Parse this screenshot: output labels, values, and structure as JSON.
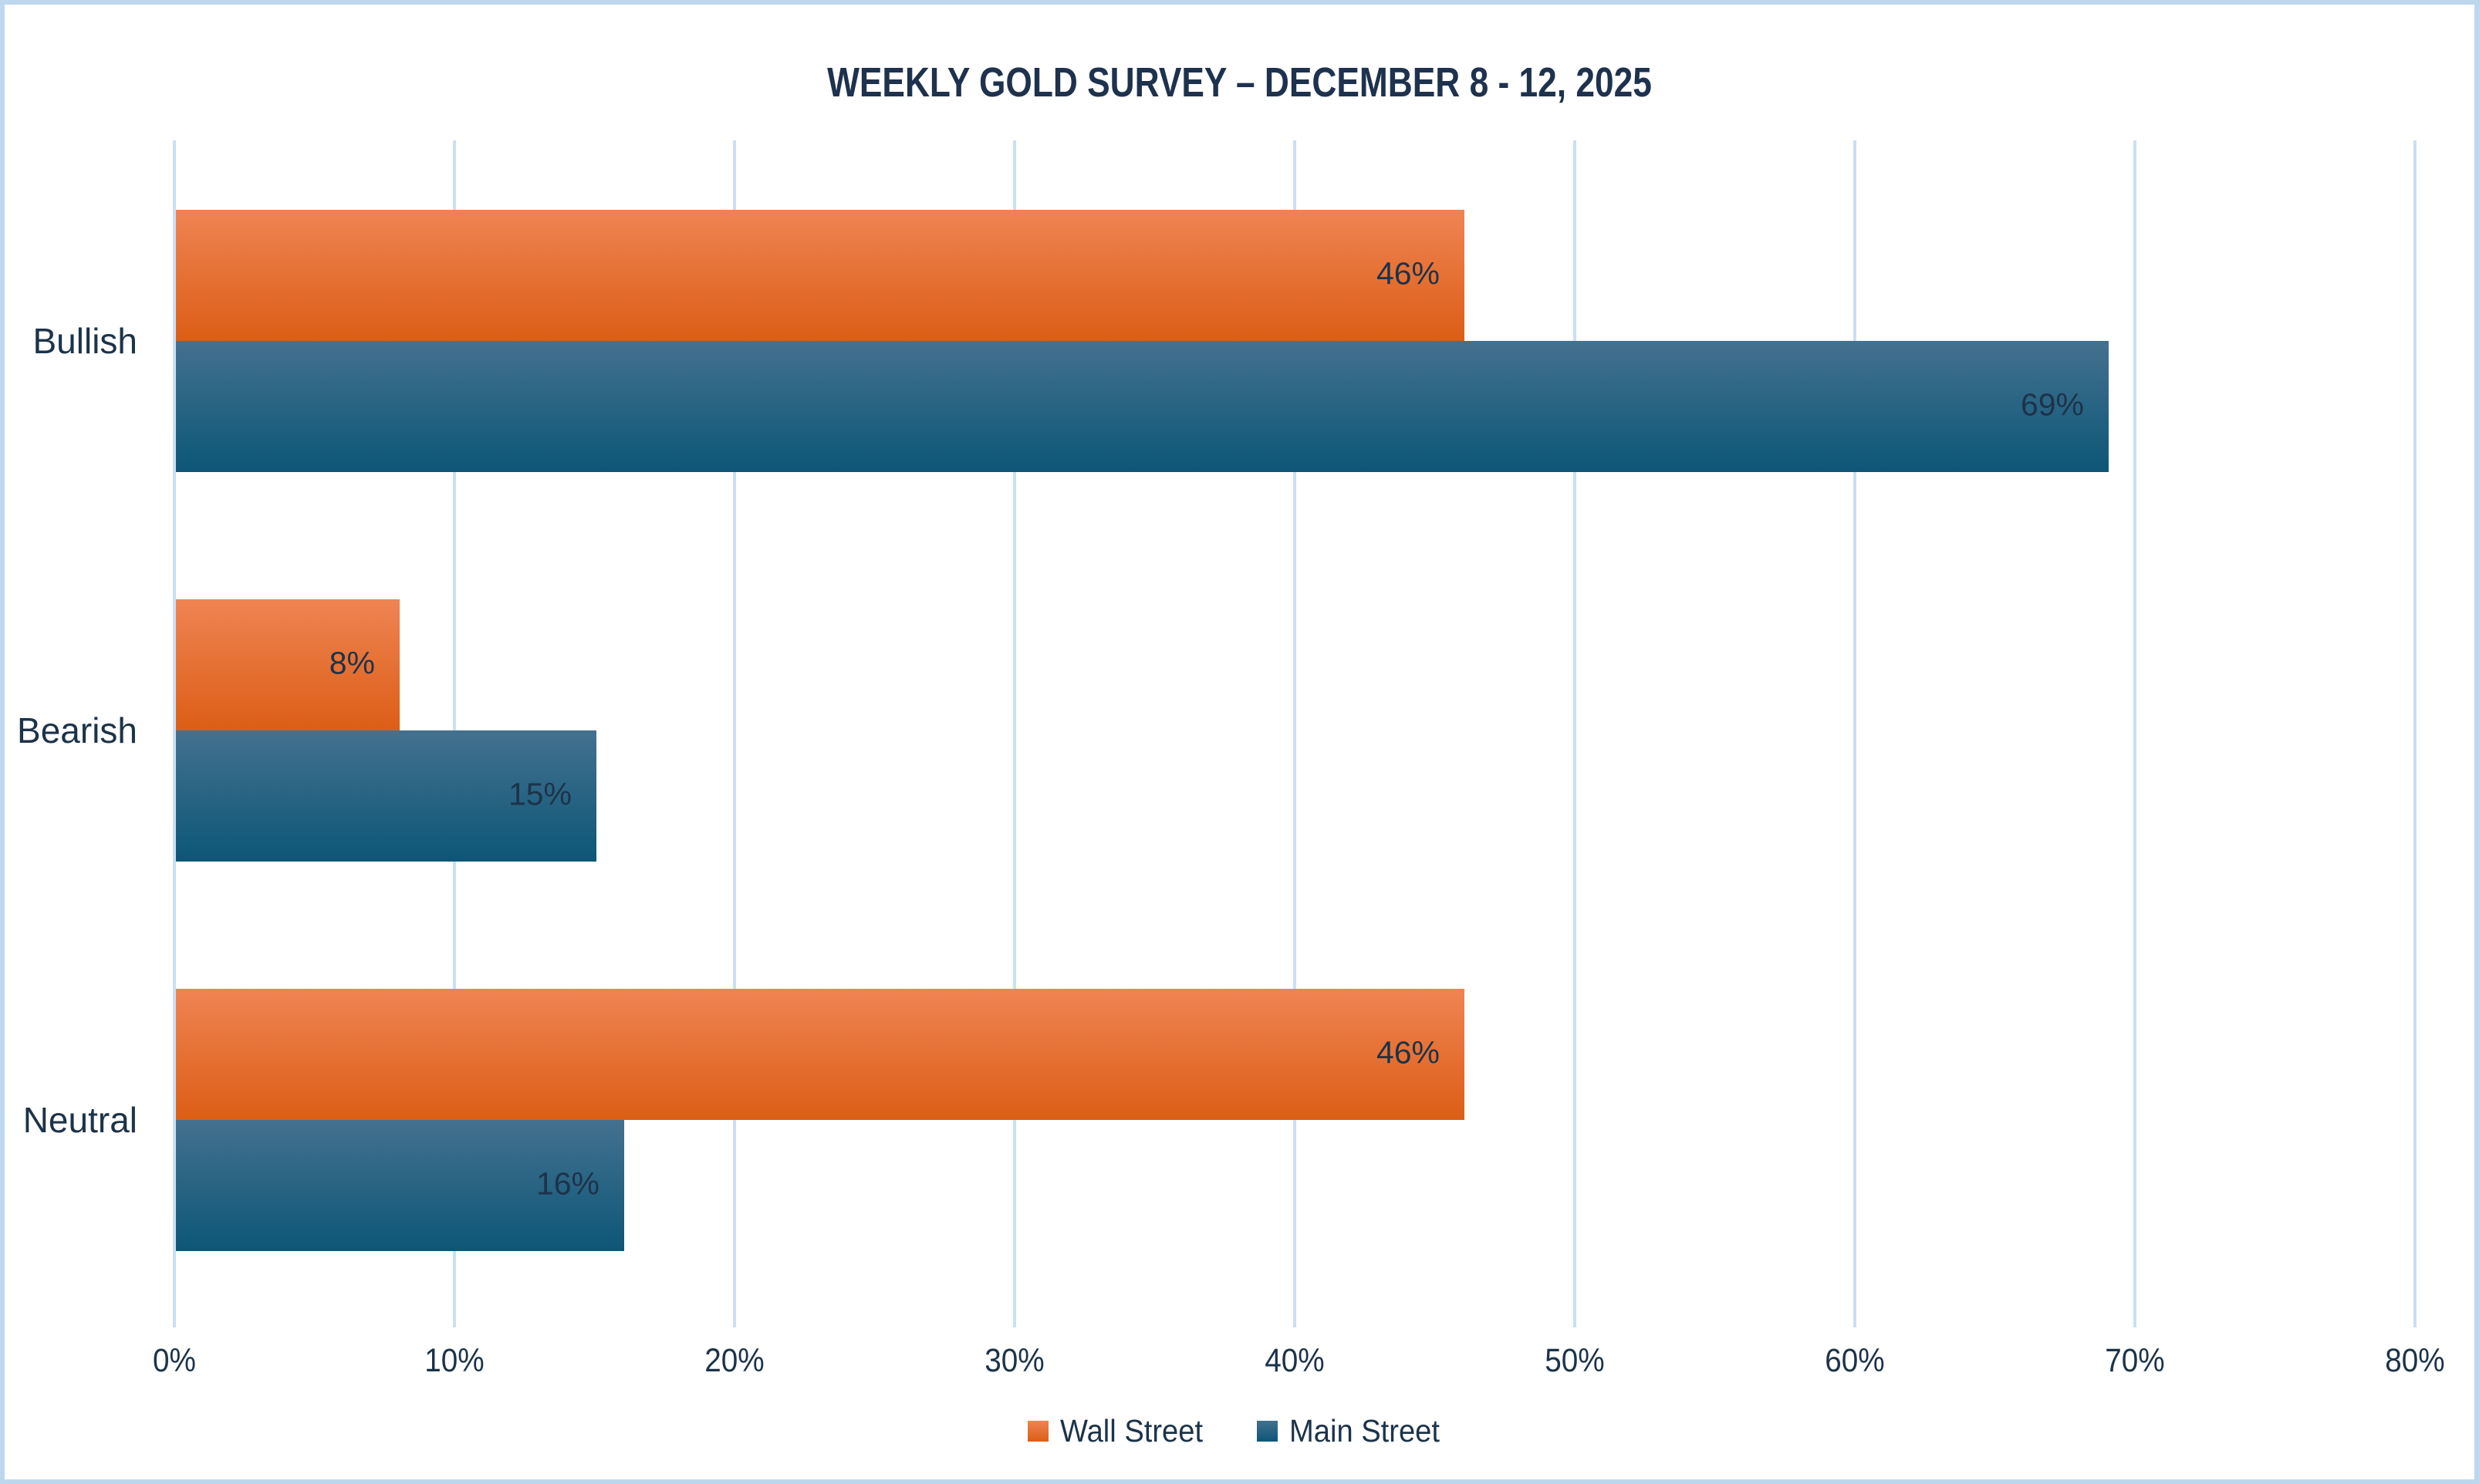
{
  "chart_data": {
    "type": "bar",
    "orientation": "horizontal",
    "title": "WEEKLY GOLD SURVEY – DECEMBER 8 - 12, 2025",
    "categories": [
      "Bullish",
      "Bearish",
      "Neutral"
    ],
    "series": [
      {
        "name": "Wall Street",
        "values": [
          46,
          8,
          46
        ]
      },
      {
        "name": "Main Street",
        "values": [
          69,
          15,
          16
        ]
      }
    ],
    "data_labels": [
      "46%",
      "69%",
      "8%",
      "15%",
      "46%",
      "16%"
    ],
    "value_suffix": "%",
    "xlim": [
      0,
      80
    ],
    "x_ticks": [
      "0%",
      "10%",
      "20%",
      "30%",
      "40%",
      "50%",
      "60%",
      "70%",
      "80%"
    ],
    "grid": true,
    "legend_position": "bottom",
    "data_label_position": "inside-end"
  },
  "colors": {
    "wall_street_top": "#EF8453",
    "wall_street_bottom": "#DC5E16",
    "main_street_top": "#44718F",
    "main_street_bottom": "#0D5677",
    "gridline": "#CBDFF4",
    "chart_border": "#BDD7EE",
    "text": "#1C3349",
    "title_text": "#1E324E"
  }
}
